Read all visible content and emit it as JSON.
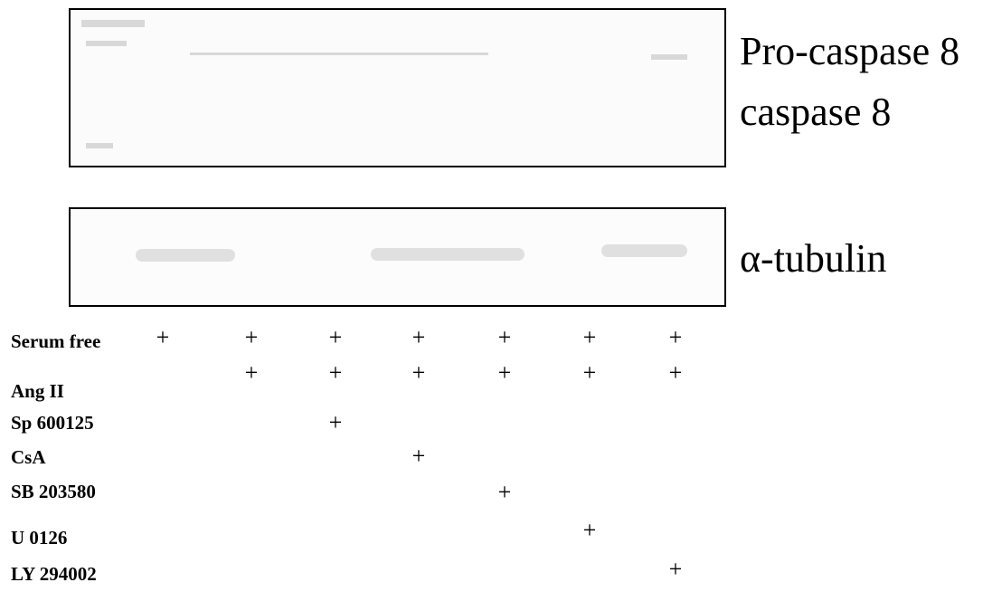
{
  "blots": [
    {
      "labels": [
        "Pro-caspase 8",
        "caspase 8"
      ]
    },
    {
      "labels": [
        "α-tubulin"
      ]
    }
  ],
  "treatments": [
    {
      "label": "Serum free",
      "lanes": [
        "+",
        "+",
        "+",
        "+",
        "+",
        "+",
        "+"
      ]
    },
    {
      "label": "Ang II",
      "lanes": [
        null,
        "+",
        "+",
        "+",
        "+",
        "+",
        "+"
      ]
    },
    {
      "label": "Sp 600125",
      "lanes": [
        null,
        null,
        "+",
        null,
        null,
        null,
        null
      ]
    },
    {
      "label": "CsA",
      "lanes": [
        null,
        null,
        null,
        "+",
        null,
        null,
        null
      ]
    },
    {
      "label": "SB 203580",
      "lanes": [
        null,
        null,
        null,
        null,
        "+",
        null,
        null
      ]
    },
    {
      "label": "U 0126",
      "lanes": [
        null,
        null,
        null,
        null,
        null,
        "+",
        null
      ]
    },
    {
      "label": "LY 294002",
      "lanes": [
        null,
        null,
        null,
        null,
        null,
        null,
        "+"
      ]
    }
  ]
}
